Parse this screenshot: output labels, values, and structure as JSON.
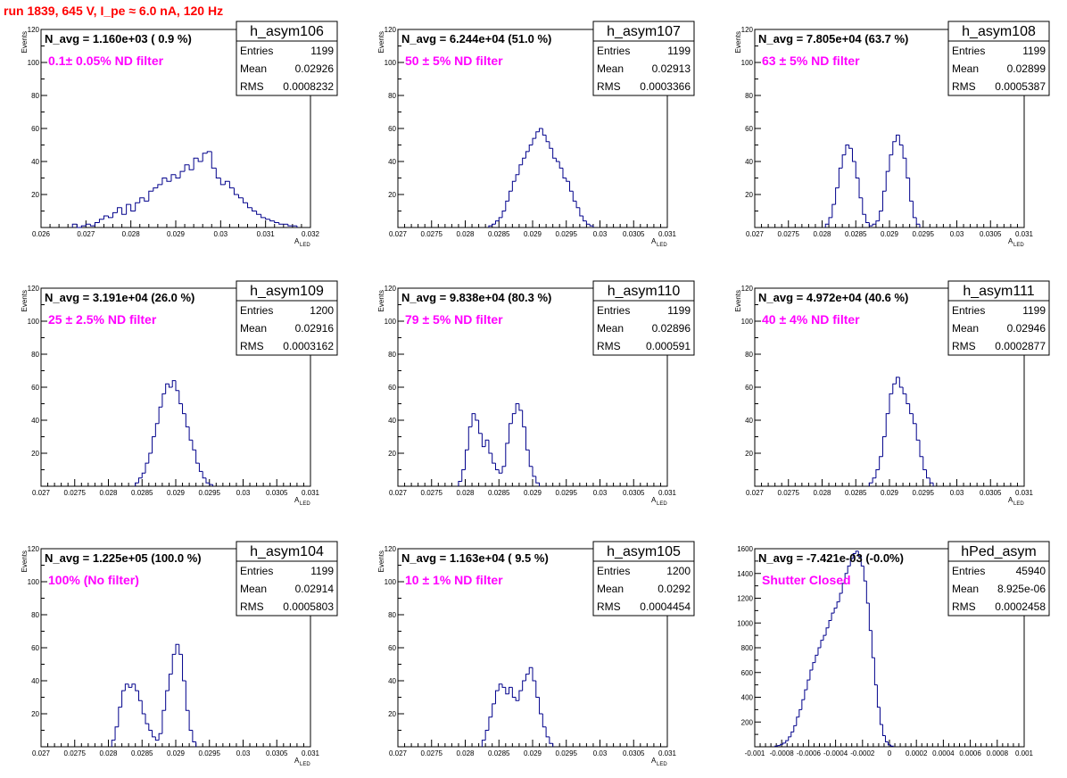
{
  "page_title": "run 1839,   645 V, I_pe ≈ 6.0 nA, 120 Hz",
  "colors": {
    "hist_line": "#00008b",
    "annotation": "#ff00ff",
    "run_title": "#ff0000"
  },
  "chart_data": [
    {
      "type": "histogram",
      "hist_name": "h_asym106",
      "navg_label": "N_avg = 1.160e+03 ( 0.9 %)",
      "filter_label": "0.1± 0.05% ND filter",
      "stats": {
        "entries": "1199",
        "mean": "0.02926",
        "rms": "0.0008232"
      },
      "xlim": [
        0.026,
        0.032
      ],
      "ylim": [
        0,
        120
      ],
      "ylabel": "Events",
      "xlabel": "A",
      "xlabel_sub": "LED",
      "xticks": [
        "0.026",
        "0.027",
        "0.028",
        "0.029",
        "0.03",
        "0.031",
        "0.032"
      ],
      "yticks": [
        "20",
        "40",
        "60",
        "80",
        "100",
        "120"
      ],
      "bin_start": 0.0267,
      "bin_width": 0.0001,
      "values": [
        2,
        0,
        1,
        2,
        1,
        3,
        5,
        7,
        6,
        9,
        12,
        8,
        14,
        10,
        15,
        18,
        16,
        22,
        24,
        26,
        30,
        28,
        32,
        30,
        34,
        38,
        35,
        42,
        40,
        45,
        46,
        36,
        30,
        26,
        28,
        24,
        20,
        18,
        15,
        12,
        10,
        8,
        6,
        5,
        4,
        3,
        2,
        2,
        1,
        1
      ]
    },
    {
      "type": "histogram",
      "hist_name": "h_asym107",
      "navg_label": "N_avg = 6.244e+04 (51.0 %)",
      "filter_label": "50 ± 5% ND filter",
      "stats": {
        "entries": "1199",
        "mean": "0.02913",
        "rms": "0.0003366"
      },
      "xlim": [
        0.027,
        0.031
      ],
      "ylim": [
        0,
        120
      ],
      "ylabel": "Events",
      "xlabel": "A",
      "xlabel_sub": "LED",
      "xticks": [
        "0.027",
        "0.0275",
        "0.028",
        "0.0285",
        "0.029",
        "0.0295",
        "0.03",
        "0.0305",
        "0.031"
      ],
      "yticks": [
        "20",
        "40",
        "60",
        "80",
        "100",
        "120"
      ],
      "bin_start": 0.02835,
      "bin_width": 5e-05,
      "values": [
        1,
        2,
        4,
        6,
        10,
        16,
        22,
        28,
        32,
        38,
        42,
        46,
        50,
        54,
        58,
        60,
        56,
        52,
        48,
        42,
        40,
        36,
        30,
        28,
        22,
        16,
        12,
        7,
        4,
        2,
        1
      ]
    },
    {
      "type": "histogram",
      "hist_name": "h_asym108",
      "navg_label": "N_avg = 7.805e+04 (63.7 %)",
      "filter_label": "63 ± 5% ND filter",
      "stats": {
        "entries": "1199",
        "mean": "0.02899",
        "rms": "0.0005387"
      },
      "xlim": [
        0.027,
        0.031
      ],
      "ylim": [
        0,
        120
      ],
      "ylabel": "Events",
      "xlabel": "A",
      "xlabel_sub": "LED",
      "xticks": [
        "0.027",
        "0.0275",
        "0.028",
        "0.0285",
        "0.029",
        "0.0295",
        "0.03",
        "0.0305",
        "0.031"
      ],
      "yticks": [
        "20",
        "40",
        "60",
        "80",
        "100",
        "120"
      ],
      "bin_start": 0.02805,
      "bin_width": 5e-05,
      "values": [
        2,
        6,
        14,
        24,
        36,
        44,
        50,
        48,
        40,
        30,
        18,
        8,
        3,
        1,
        2,
        4,
        10,
        22,
        34,
        44,
        52,
        56,
        50,
        42,
        30,
        16,
        6,
        2
      ]
    },
    {
      "type": "histogram",
      "hist_name": "h_asym109",
      "navg_label": "N_avg = 3.191e+04 (26.0 %)",
      "filter_label": "25 ± 2.5% ND filter",
      "stats": {
        "entries": "1200",
        "mean": "0.02916",
        "rms": "0.0003162"
      },
      "xlim": [
        0.027,
        0.031
      ],
      "ylim": [
        0,
        120
      ],
      "ylabel": "Events",
      "xlabel": "A",
      "xlabel_sub": "LED",
      "xticks": [
        "0.027",
        "0.0275",
        "0.028",
        "0.0285",
        "0.029",
        "0.0295",
        "0.03",
        "0.0305",
        "0.031"
      ],
      "yticks": [
        "20",
        "40",
        "60",
        "80",
        "100",
        "120"
      ],
      "bin_start": 0.0284,
      "bin_width": 5e-05,
      "values": [
        2,
        5,
        8,
        14,
        20,
        30,
        38,
        48,
        56,
        62,
        60,
        64,
        58,
        50,
        44,
        36,
        28,
        22,
        14,
        9,
        5,
        2,
        1
      ]
    },
    {
      "type": "histogram",
      "hist_name": "h_asym110",
      "navg_label": "N_avg = 9.838e+04 (80.3 %)",
      "filter_label": "79 ± 5% ND filter",
      "stats": {
        "entries": "1199",
        "mean": "0.02896",
        "rms": "0.000591"
      },
      "xlim": [
        0.027,
        0.031
      ],
      "ylim": [
        0,
        120
      ],
      "ylabel": "Events",
      "xlabel": "A",
      "xlabel_sub": "LED",
      "xticks": [
        "0.027",
        "0.0275",
        "0.028",
        "0.0285",
        "0.029",
        "0.0295",
        "0.03",
        "0.0305",
        "0.031"
      ],
      "yticks": [
        "20",
        "40",
        "60",
        "80",
        "100",
        "120"
      ],
      "bin_start": 0.0279,
      "bin_width": 5e-05,
      "values": [
        3,
        10,
        22,
        36,
        44,
        40,
        32,
        24,
        28,
        20,
        14,
        10,
        8,
        12,
        26,
        38,
        44,
        50,
        46,
        36,
        22,
        12,
        6,
        2
      ]
    },
    {
      "type": "histogram",
      "hist_name": "h_asym111",
      "navg_label": "N_avg = 4.972e+04 (40.6 %)",
      "filter_label": "40 ± 4% ND filter",
      "stats": {
        "entries": "1199",
        "mean": "0.02946",
        "rms": "0.0002877"
      },
      "xlim": [
        0.027,
        0.031
      ],
      "ylim": [
        0,
        120
      ],
      "ylabel": "Events",
      "xlabel": "A",
      "xlabel_sub": "LED",
      "xticks": [
        "0.027",
        "0.0275",
        "0.028",
        "0.0285",
        "0.029",
        "0.0295",
        "0.03",
        "0.0305",
        "0.031"
      ],
      "yticks": [
        "20",
        "40",
        "60",
        "80",
        "100",
        "120"
      ],
      "bin_start": 0.0287,
      "bin_width": 5e-05,
      "values": [
        2,
        5,
        10,
        18,
        30,
        44,
        56,
        62,
        66,
        60,
        56,
        50,
        44,
        38,
        28,
        18,
        10,
        5,
        2
      ]
    },
    {
      "type": "histogram",
      "hist_name": "h_asym104",
      "navg_label": "N_avg = 1.225e+05 (100.0 %)",
      "filter_label": "100% (No filter)",
      "stats": {
        "entries": "1199",
        "mean": "0.02914",
        "rms": "0.0005803"
      },
      "xlim": [
        0.027,
        0.031
      ],
      "ylim": [
        0,
        120
      ],
      "ylabel": "Events",
      "xlabel": "A",
      "xlabel_sub": "LED",
      "xticks": [
        "0.027",
        "0.0275",
        "0.028",
        "0.0285",
        "0.029",
        "0.0295",
        "0.03",
        "0.0305",
        "0.031"
      ],
      "yticks": [
        "20",
        "40",
        "60",
        "80",
        "100",
        "120"
      ],
      "bin_start": 0.02805,
      "bin_width": 5e-05,
      "values": [
        4,
        12,
        24,
        34,
        38,
        36,
        38,
        34,
        28,
        20,
        14,
        10,
        6,
        4,
        8,
        22,
        34,
        44,
        56,
        62,
        56,
        40,
        22,
        10,
        3
      ]
    },
    {
      "type": "histogram",
      "hist_name": "h_asym105",
      "navg_label": "N_avg = 1.163e+04 ( 9.5 %)",
      "filter_label": "10 ± 1% ND filter",
      "stats": {
        "entries": "1200",
        "mean": "0.0292",
        "rms": "0.0004454"
      },
      "xlim": [
        0.027,
        0.031
      ],
      "ylim": [
        0,
        120
      ],
      "ylabel": "Events",
      "xlabel": "A",
      "xlabel_sub": "LED",
      "xticks": [
        "0.027",
        "0.0275",
        "0.028",
        "0.0285",
        "0.029",
        "0.0295",
        "0.03",
        "0.0305",
        "0.031"
      ],
      "yticks": [
        "20",
        "40",
        "60",
        "80",
        "100",
        "120"
      ],
      "bin_start": 0.02825,
      "bin_width": 5e-05,
      "values": [
        4,
        10,
        18,
        26,
        34,
        38,
        36,
        32,
        36,
        30,
        28,
        34,
        40,
        44,
        48,
        40,
        30,
        20,
        12,
        6,
        2
      ]
    },
    {
      "type": "histogram",
      "hist_name": "hPed_asym",
      "navg_label": "N_avg = -7.421e-03 (-0.0%)",
      "filter_label": "Shutter Closed",
      "stats": {
        "entries": "45940",
        "mean": "8.925e-06",
        "rms": "0.0002458"
      },
      "xlim": [
        -0.001,
        0.001
      ],
      "ylim": [
        0,
        1600
      ],
      "ylabel": "",
      "xlabel": "",
      "xlabel_sub": "",
      "xticks": [
        "-0.001",
        "-0.0008",
        "-0.0006",
        "-0.0004",
        "-0.0002",
        "0",
        "0.0002",
        "0.0004",
        "0.0006",
        "0.0008",
        "0.001"
      ],
      "yticks": [
        "200",
        "400",
        "600",
        "800",
        "1000",
        "1200",
        "1400",
        "1600"
      ],
      "bin_start": -0.00085,
      "bin_width": 2e-05,
      "values": [
        5,
        10,
        20,
        30,
        50,
        80,
        120,
        170,
        240,
        300,
        380,
        460,
        540,
        620,
        680,
        740,
        800,
        860,
        900,
        960,
        1020,
        1080,
        1120,
        1170,
        1240,
        1320,
        1400,
        1460,
        1520,
        1560,
        1580,
        1540,
        1460,
        1340,
        1160,
        940,
        720,
        500,
        320,
        180,
        90,
        40,
        15,
        5
      ]
    }
  ]
}
